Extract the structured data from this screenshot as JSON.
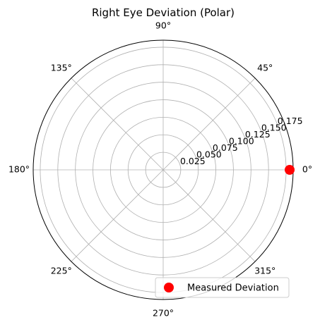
{
  "chart_data": {
    "type": "scatter",
    "projection": "polar",
    "title": "Right Eye Deviation (Polar)",
    "angle_unit": "degrees",
    "angle_ticks": [
      0,
      45,
      90,
      135,
      180,
      225,
      270,
      315
    ],
    "angle_tick_labels": [
      "0°",
      "45°",
      "90°",
      "135°",
      "180°",
      "225°",
      "270°",
      "315°"
    ],
    "radial_ticks": [
      0.025,
      0.05,
      0.075,
      0.1,
      0.125,
      0.15,
      0.175
    ],
    "radial_tick_labels": [
      "0.025",
      "0.050",
      "0.075",
      "0.100",
      "0.125",
      "0.150",
      "0.175"
    ],
    "rlim": [
      0,
      0.185
    ],
    "grid": true,
    "legend_position": "lower-right",
    "series": [
      {
        "name": "Measured Deviation",
        "marker": "circle",
        "color": "#ff0000",
        "points": [
          {
            "theta": 0,
            "r": 0.18
          }
        ]
      }
    ]
  }
}
